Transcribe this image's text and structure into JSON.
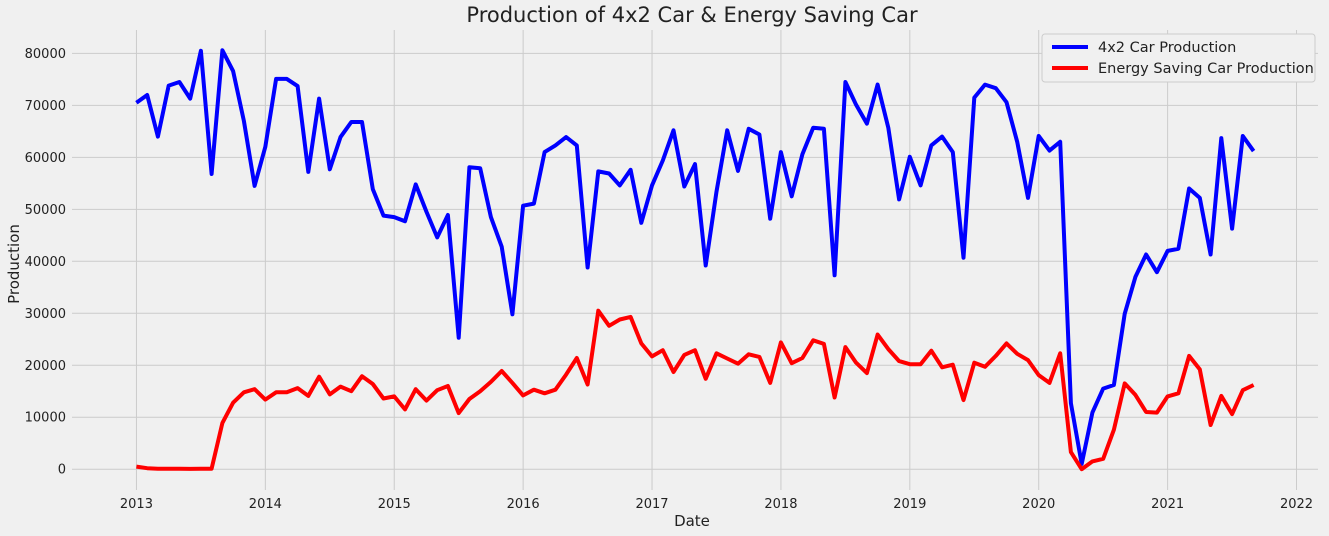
{
  "chart_data": {
    "type": "line",
    "title": "Production of 4x2 Car & Energy Saving Car",
    "xlabel": "Date",
    "ylabel": "Production",
    "xlim": [
      "2012-07",
      "2022-03"
    ],
    "ylim": [
      -4000,
      84500
    ],
    "grid": true,
    "legend_placement": "top-right",
    "x_ticks": [
      "2013",
      "2014",
      "2015",
      "2016",
      "2017",
      "2018",
      "2019",
      "2020",
      "2021",
      "2022"
    ],
    "y_ticks": [
      0,
      10000,
      20000,
      30000,
      40000,
      50000,
      60000,
      70000,
      80000
    ],
    "x": [
      "2013-01",
      "2013-02",
      "2013-03",
      "2013-04",
      "2013-05",
      "2013-06",
      "2013-07",
      "2013-08",
      "2013-09",
      "2013-10",
      "2013-11",
      "2013-12",
      "2014-01",
      "2014-02",
      "2014-03",
      "2014-04",
      "2014-05",
      "2014-06",
      "2014-07",
      "2014-08",
      "2014-09",
      "2014-10",
      "2014-11",
      "2014-12",
      "2015-01",
      "2015-02",
      "2015-03",
      "2015-04",
      "2015-05",
      "2015-06",
      "2015-07",
      "2015-08",
      "2015-09",
      "2015-10",
      "2015-11",
      "2015-12",
      "2016-01",
      "2016-02",
      "2016-03",
      "2016-04",
      "2016-05",
      "2016-06",
      "2016-07",
      "2016-08",
      "2016-09",
      "2016-10",
      "2016-11",
      "2016-12",
      "2017-01",
      "2017-02",
      "2017-03",
      "2017-04",
      "2017-05",
      "2017-06",
      "2017-07",
      "2017-08",
      "2017-09",
      "2017-10",
      "2017-11",
      "2017-12",
      "2018-01",
      "2018-02",
      "2018-03",
      "2018-04",
      "2018-05",
      "2018-06",
      "2018-07",
      "2018-08",
      "2018-09",
      "2018-10",
      "2018-11",
      "2018-12",
      "2019-01",
      "2019-02",
      "2019-03",
      "2019-04",
      "2019-05",
      "2019-06",
      "2019-07",
      "2019-08",
      "2019-09",
      "2019-10",
      "2019-11",
      "2019-12",
      "2020-01",
      "2020-02",
      "2020-03",
      "2020-04",
      "2020-05",
      "2020-06",
      "2020-07",
      "2020-08",
      "2020-09",
      "2020-10",
      "2020-11",
      "2020-12",
      "2021-01",
      "2021-02",
      "2021-03",
      "2021-04",
      "2021-05",
      "2021-06",
      "2021-07",
      "2021-08",
      "2021-09"
    ],
    "series": [
      {
        "name": "4x2 Car Production",
        "color": "#0000ff",
        "values": [
          70500,
          72000,
          64000,
          73800,
          74500,
          71300,
          80500,
          56800,
          80600,
          76600,
          67000,
          54500,
          62000,
          75100,
          75100,
          73700,
          57200,
          71300,
          57700,
          63900,
          66800,
          66800,
          53900,
          48800,
          48500,
          47700,
          54800,
          49500,
          44600,
          48900,
          25300,
          58100,
          57900,
          48500,
          42800,
          29800,
          50700,
          51100,
          61000,
          62300,
          63900,
          62300,
          38800,
          57300,
          56900,
          54600,
          57600,
          47400,
          54600,
          59400,
          65200,
          54400,
          58700,
          39200,
          53400,
          65200,
          57400,
          65500,
          64400,
          48200,
          61000,
          52500,
          60600,
          65700,
          65500,
          37300,
          74500,
          70100,
          66500,
          74000,
          65700,
          51900,
          60100,
          54600,
          62300,
          64000,
          61000,
          40700,
          71500,
          74000,
          73300,
          70600,
          63000,
          52200,
          64100,
          61300,
          63000,
          12700,
          1000,
          10900,
          15500,
          16200,
          29900,
          37000,
          41300,
          37900,
          42000,
          42400,
          54000,
          52200,
          41300,
          63700,
          46300,
          64100,
          61200
        ]
      },
      {
        "name": "Energy Saving Car Production",
        "color": "#ff0000",
        "values": [
          500,
          200,
          100,
          100,
          100,
          50,
          100,
          100,
          8900,
          12800,
          14800,
          15400,
          13400,
          14800,
          14800,
          15600,
          14100,
          17800,
          14400,
          15900,
          15000,
          17900,
          16400,
          13600,
          14000,
          11500,
          15400,
          13200,
          15200,
          16000,
          10800,
          13500,
          15000,
          16800,
          18900,
          16600,
          14200,
          15300,
          14600,
          15300,
          18200,
          21400,
          16300,
          30500,
          27600,
          28800,
          29300,
          24200,
          21700,
          22900,
          18700,
          22000,
          22900,
          17400,
          22300,
          21300,
          20300,
          22100,
          21600,
          16600,
          24400,
          20400,
          21400,
          24800,
          24100,
          13800,
          23500,
          20500,
          18500,
          25900,
          23100,
          20800,
          20200,
          20200,
          22800,
          19600,
          20100,
          13300,
          20500,
          19700,
          21800,
          24200,
          22200,
          21000,
          18100,
          16600,
          22300,
          3300,
          0,
          1500,
          2000,
          7600,
          16500,
          14300,
          11000,
          10900,
          14000,
          14600,
          21800,
          19200,
          8500,
          14100,
          10600,
          15200,
          16200
        ]
      }
    ]
  }
}
